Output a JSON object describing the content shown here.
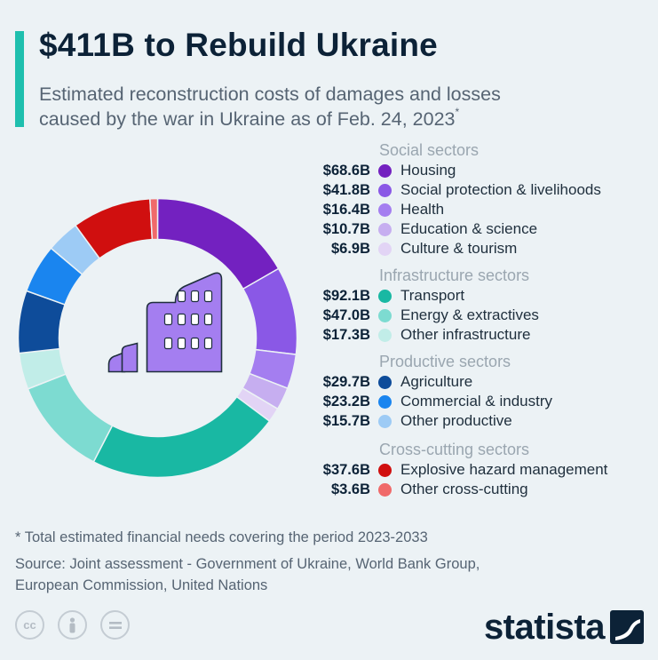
{
  "header": {
    "title": "$411B to Rebuild Ukraine",
    "subtitle_line1": "Estimated reconstruction costs of damages and losses",
    "subtitle_line2": "caused by the war in Ukraine as of Feb. 24, 2023",
    "subtitle_mark": "*"
  },
  "chart_data": {
    "type": "donut",
    "title": "$411B to Rebuild Ukraine",
    "unit": "USD billion",
    "groups": [
      {
        "name": "Social sectors",
        "items": [
          {
            "label": "Housing",
            "value": 68.6,
            "display": "$68.6B",
            "color": "#7321c0"
          },
          {
            "label": "Social protection & livelihoods",
            "value": 41.8,
            "display": "$41.8B",
            "color": "#8a58e6"
          },
          {
            "label": "Health",
            "value": 16.4,
            "display": "$16.4B",
            "color": "#a47ef0"
          },
          {
            "label": "Education & science",
            "value": 10.7,
            "display": "$10.7B",
            "color": "#c6aef0"
          },
          {
            "label": "Culture & tourism",
            "value": 6.9,
            "display": "$6.9B",
            "color": "#e2d4f5"
          }
        ]
      },
      {
        "name": "Infrastructure sectors",
        "items": [
          {
            "label": "Transport",
            "value": 92.1,
            "display": "$92.1B",
            "color": "#19b8a3"
          },
          {
            "label": "Energy & extractives",
            "value": 47.0,
            "display": "$47.0B",
            "color": "#7ddbd1"
          },
          {
            "label": "Other infrastructure",
            "value": 17.3,
            "display": "$17.3B",
            "color": "#c1ede8"
          }
        ]
      },
      {
        "name": "Productive sectors",
        "items": [
          {
            "label": "Agriculture",
            "value": 29.7,
            "display": "$29.7B",
            "color": "#0e4c9a"
          },
          {
            "label": "Commercial & industry",
            "value": 23.2,
            "display": "$23.2B",
            "color": "#1a85ef"
          },
          {
            "label": "Other productive",
            "value": 15.7,
            "display": "$15.7B",
            "color": "#9dcbf5"
          }
        ]
      },
      {
        "name": "Cross-cutting sectors",
        "items": [
          {
            "label": "Explosive hazard management",
            "value": 37.6,
            "display": "$37.6B",
            "color": "#d00f0f"
          },
          {
            "label": "Other cross-cutting",
            "value": 3.6,
            "display": "$3.6B",
            "color": "#f06a6a"
          }
        ]
      }
    ]
  },
  "footer": {
    "footnote": "* Total estimated financial needs covering the period 2023-2033",
    "source_line1": "Source: Joint assessment - Government of Ukraine, World Bank Group,",
    "source_line2": "European Commission, United Nations",
    "cc_icons": [
      "cc-icon",
      "attribution-icon",
      "no-derivatives-icon"
    ],
    "brand": "statista"
  }
}
